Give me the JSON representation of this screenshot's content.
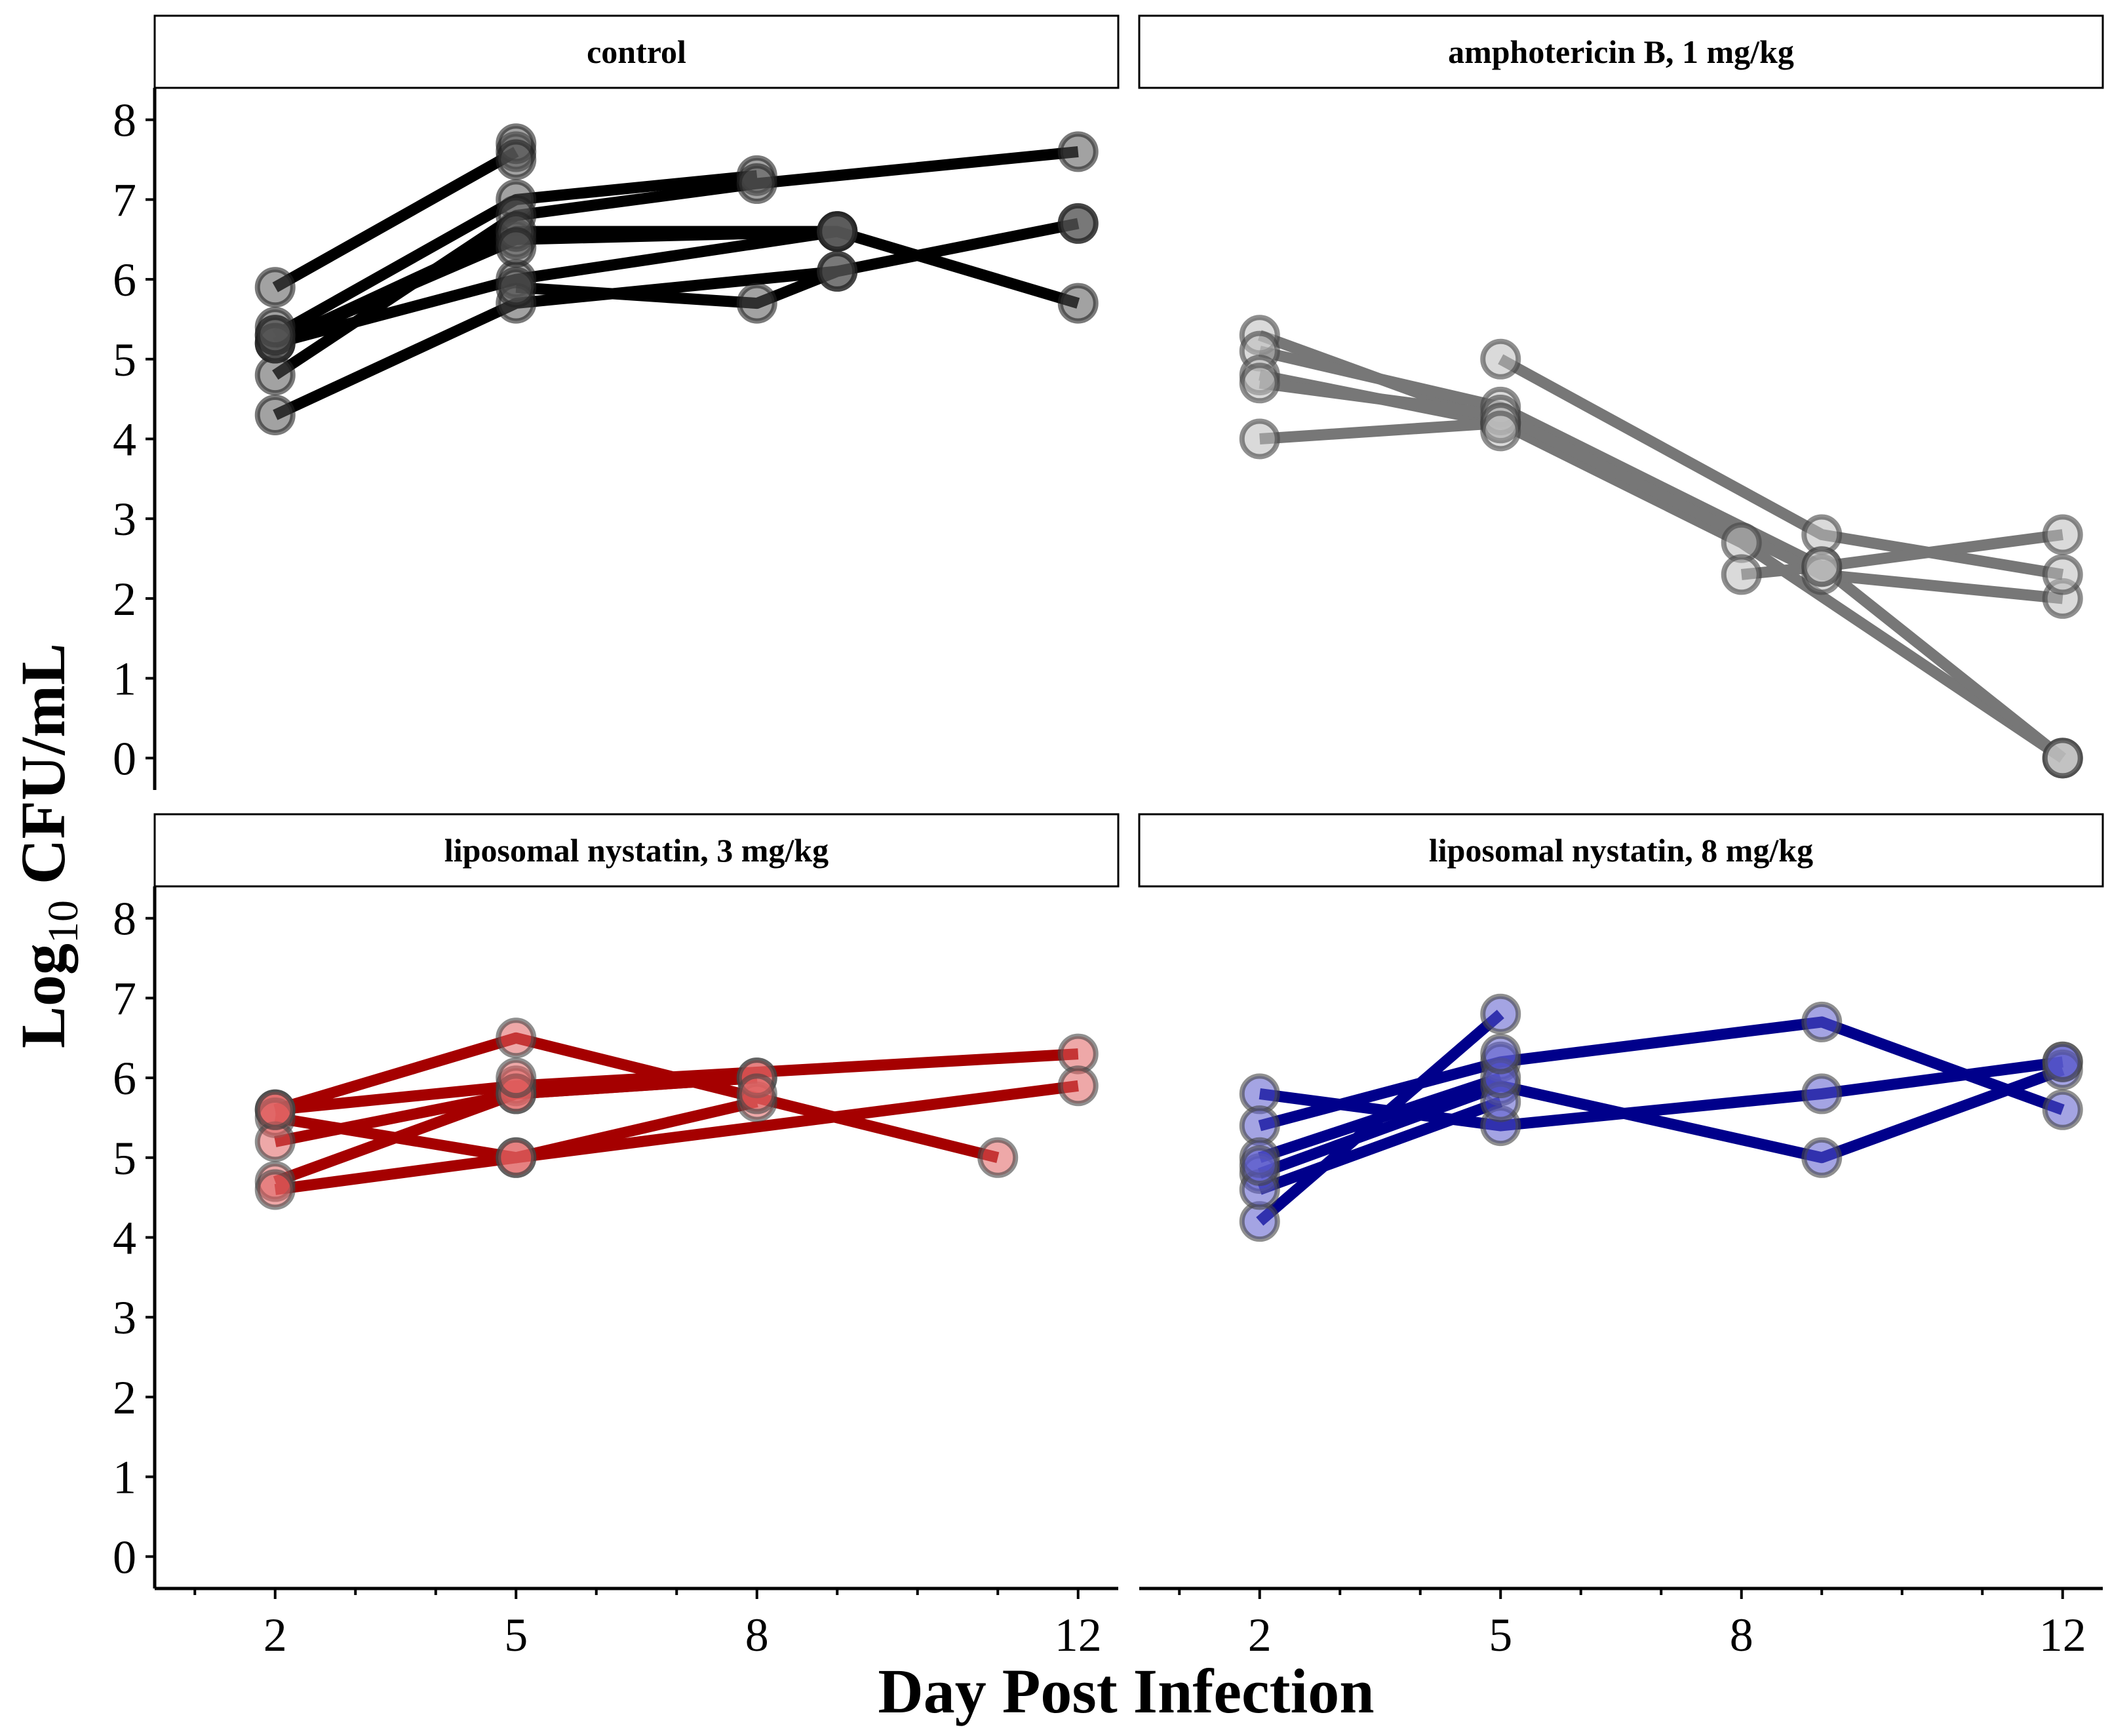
{
  "chart_data": {
    "type": "line",
    "xlabel": "Day Post Infection",
    "ylabel": {
      "prefix": "Log",
      "subscript": "10",
      "suffix": " CFU/mL"
    },
    "xlim": [
      0.5,
      12.5
    ],
    "ylim": [
      -0.4,
      8.4
    ],
    "x_ticks": [
      2,
      5,
      8,
      12
    ],
    "x_minor_ticks": [
      1,
      3,
      4,
      6,
      7,
      9,
      10,
      11
    ],
    "y_ticks": [
      0,
      1,
      2,
      3,
      4,
      5,
      6,
      7,
      8
    ],
    "panels": [
      {
        "title": "control",
        "line_color": "#000000",
        "point_fill": "#555555",
        "point_stroke": "#222222",
        "series": [
          {
            "x": [
              2,
              5
            ],
            "y": [
              5.9,
              7.6
            ]
          },
          {
            "x": [
              2,
              5,
              8
            ],
            "y": [
              5.3,
              7.0,
              7.3
            ]
          },
          {
            "x": [
              2,
              5,
              9
            ],
            "y": [
              5.2,
              6.5,
              6.6
            ]
          },
          {
            "x": [
              2,
              5,
              9,
              12
            ],
            "y": [
              5.2,
              6.0,
              6.6,
              5.7
            ]
          },
          {
            "x": [
              2,
              5,
              8,
              12
            ],
            "y": [
              4.8,
              6.8,
              7.2,
              7.6
            ]
          },
          {
            "x": [
              2,
              5,
              9
            ],
            "y": [
              4.3,
              5.7,
              6.1
            ]
          },
          {
            "x": [
              2,
              5,
              9
            ],
            "y": [
              5.2,
              6.6,
              6.6
            ]
          },
          {
            "x": [
              5,
              8,
              9,
              12
            ],
            "y": [
              5.9,
              5.7,
              6.1,
              6.7
            ]
          }
        ],
        "extra_points": {
          "x": [
            2,
            2,
            5,
            5,
            5,
            9,
            12
          ],
          "y": [
            5.4,
            5.3,
            7.7,
            7.5,
            6.4,
            6.6,
            6.7
          ]
        }
      },
      {
        "title": "amphotericin B, 1 mg/kg",
        "line_color": "#777777",
        "point_fill": "#bbbbbb",
        "point_stroke": "#444444",
        "series": [
          {
            "x": [
              2,
              5,
              8,
              12
            ],
            "y": [
              5.3,
              4.2,
              2.7,
              0.0
            ]
          },
          {
            "x": [
              2,
              5,
              9,
              12
            ],
            "y": [
              5.1,
              4.4,
              2.4,
              0.0
            ]
          },
          {
            "x": [
              2,
              5
            ],
            "y": [
              4.8,
              4.2
            ]
          },
          {
            "x": [
              2,
              5,
              9,
              12
            ],
            "y": [
              4.7,
              4.3,
              2.3,
              2.0
            ]
          },
          {
            "x": [
              2,
              5
            ],
            "y": [
              4.0,
              4.2
            ]
          },
          {
            "x": [
              5,
              9,
              12
            ],
            "y": [
              5.0,
              2.8,
              2.3
            ]
          },
          {
            "x": [
              8,
              9,
              12
            ],
            "y": [
              2.3,
              2.4,
              2.8
            ]
          }
        ],
        "extra_points": {
          "x": [
            5,
            12
          ],
          "y": [
            4.1,
            0.0
          ]
        }
      },
      {
        "title": "liposomal nystatin, 3 mg/kg",
        "line_color": "#a50000",
        "point_fill": "#e06060",
        "point_stroke": "#444444",
        "series": [
          {
            "x": [
              2,
              5,
              12
            ],
            "y": [
              5.6,
              5.9,
              6.3
            ]
          },
          {
            "x": [
              2,
              5,
              11
            ],
            "y": [
              5.6,
              6.5,
              5.0
            ]
          },
          {
            "x": [
              2,
              5,
              8
            ],
            "y": [
              5.5,
              5.0,
              5.7
            ]
          },
          {
            "x": [
              2,
              5,
              8
            ],
            "y": [
              5.2,
              5.8,
              6.0
            ]
          },
          {
            "x": [
              2,
              5,
              8
            ],
            "y": [
              4.7,
              5.8,
              6.0
            ]
          },
          {
            "x": [
              2,
              5,
              12
            ],
            "y": [
              4.6,
              5.0,
              5.9
            ]
          }
        ],
        "extra_points": {
          "x": [
            2,
            5,
            8
          ],
          "y": [
            5.6,
            6.0,
            5.8
          ]
        }
      },
      {
        "title": "liposomal nystatin, 8 mg/kg",
        "line_color": "#00008b",
        "point_fill": "#5a5acc",
        "point_stroke": "#444444",
        "series": [
          {
            "x": [
              2,
              5
            ],
            "y": [
              4.2,
              6.8
            ]
          },
          {
            "x": [
              2,
              5,
              9,
              12
            ],
            "y": [
              5.8,
              5.4,
              5.8,
              6.2
            ]
          },
          {
            "x": [
              2,
              5,
              9,
              12
            ],
            "y": [
              5.4,
              6.2,
              6.7,
              5.6
            ]
          },
          {
            "x": [
              2,
              5,
              9,
              12
            ],
            "y": [
              4.8,
              5.9,
              5.0,
              6.1
            ]
          },
          {
            "x": [
              2,
              5
            ],
            "y": [
              4.6,
              5.7
            ]
          },
          {
            "x": [
              2,
              5
            ],
            "y": [
              5.0,
              6.0
            ]
          }
        ],
        "extra_points": {
          "x": [
            2,
            5,
            12
          ],
          "y": [
            4.9,
            6.3,
            6.2
          ]
        }
      }
    ]
  }
}
